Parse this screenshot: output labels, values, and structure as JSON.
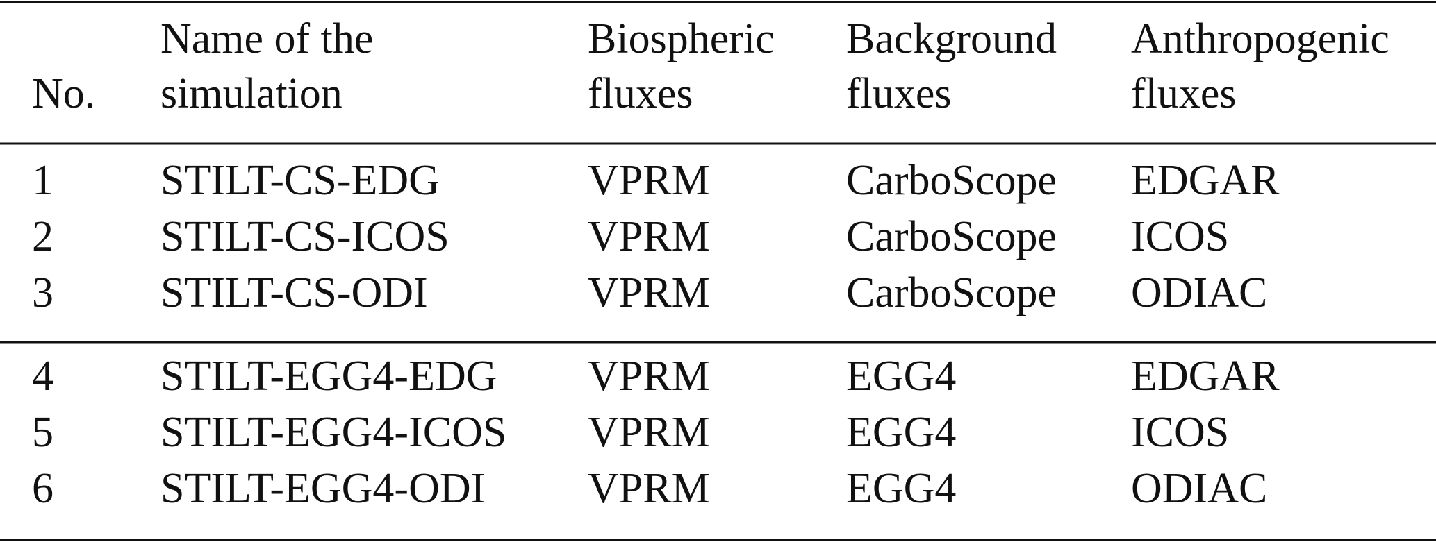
{
  "table": {
    "header": [
      [
        "No."
      ],
      [
        "Name of the",
        "simulation"
      ],
      [
        "Biospheric",
        "fluxes"
      ],
      [
        "Background",
        "fluxes"
      ],
      [
        "Anthropogenic",
        "fluxes"
      ]
    ],
    "groups": [
      [
        [
          "1",
          "STILT-CS-EDG",
          "VPRM",
          "CarboScope",
          "EDGAR"
        ],
        [
          "2",
          "STILT-CS-ICOS",
          "VPRM",
          "CarboScope",
          "ICOS"
        ],
        [
          "3",
          "STILT-CS-ODI",
          "VPRM",
          "CarboScope",
          "ODIAC"
        ]
      ],
      [
        [
          "4",
          "STILT-EGG4-EDG",
          "VPRM",
          "EGG4",
          "EDGAR"
        ],
        [
          "5",
          "STILT-EGG4-ICOS",
          "VPRM",
          "EGG4",
          "ICOS"
        ],
        [
          "6",
          "STILT-EGG4-ODI",
          "VPRM",
          "EGG4",
          "ODIAC"
        ]
      ]
    ]
  }
}
